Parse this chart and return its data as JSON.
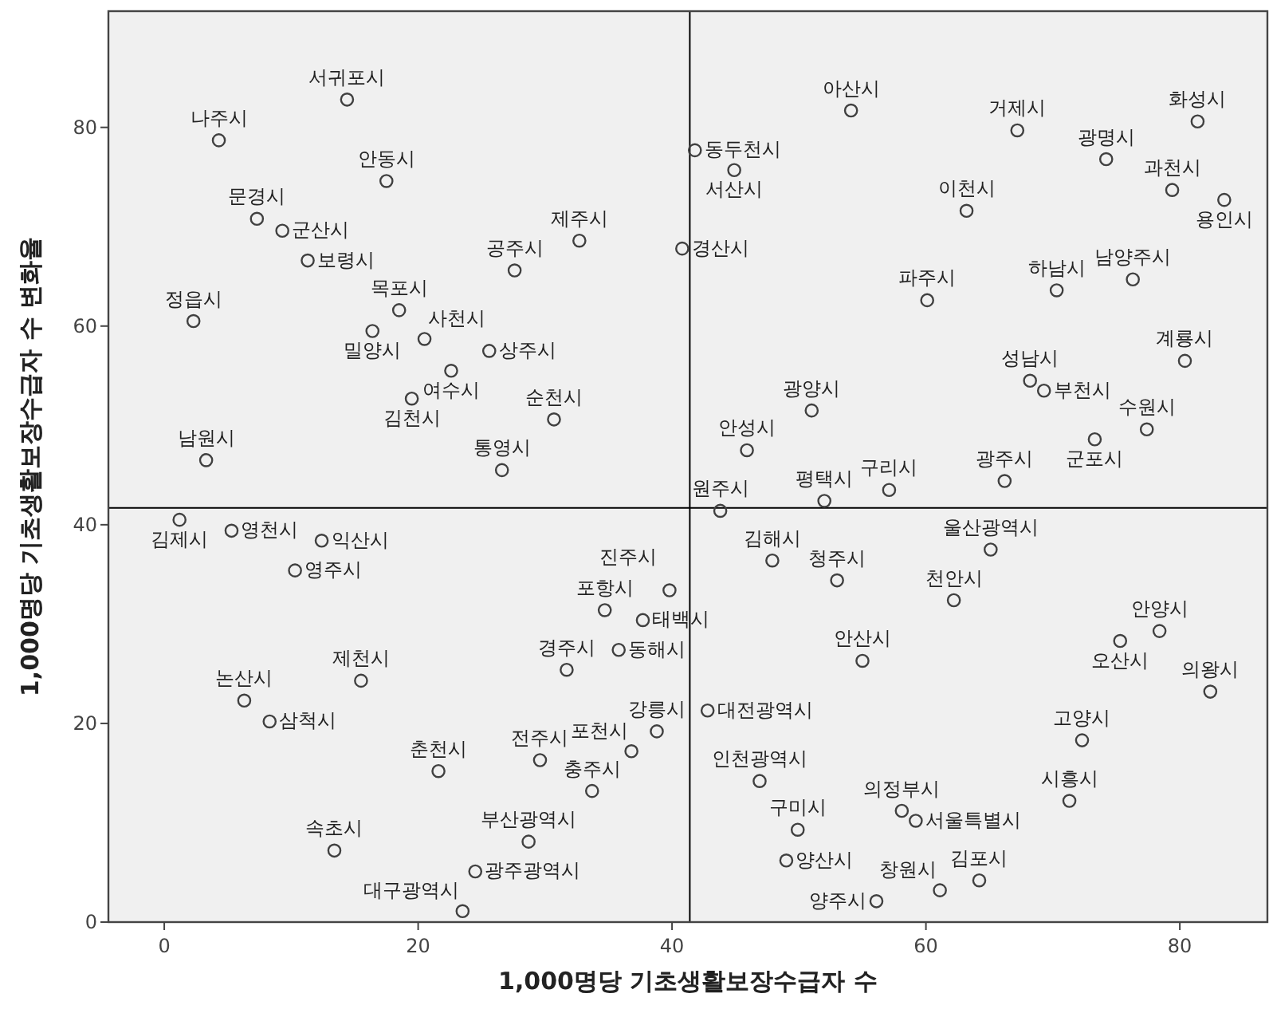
{
  "chart_data": {
    "type": "scatter",
    "xlabel": "1,000명당 기초생활보장수급자 수",
    "ylabel": "1,000명당 기초생활보장수급자 수 변화율",
    "xlim": [
      -4.4,
      86.9
    ],
    "ylim": [
      0,
      91.7
    ],
    "xticks": [
      0,
      20,
      40,
      60,
      80
    ],
    "yticks": [
      0,
      20,
      40,
      60,
      80
    ],
    "grid": false,
    "marker": "circle",
    "color": "#404040",
    "ref_lines": [
      {
        "axis": "x",
        "value": 41.4
      },
      {
        "axis": "y",
        "value": 41.7
      }
    ],
    "x": [
      14.4,
      4.3,
      17.5,
      7.3,
      9.3,
      11.3,
      2.3,
      18.5,
      16.4,
      20.5,
      27.6,
      25.6,
      32.7,
      22.6,
      19.5,
      30.7,
      26.6,
      3.3,
      41.8,
      44.9,
      40.8,
      54.1,
      67.2,
      74.2,
      81.4,
      79.4,
      83.5,
      63.2,
      60.1,
      70.3,
      76.3,
      80.4,
      68.2,
      69.3,
      77.4,
      73.3,
      51.0,
      45.9,
      57.1,
      66.2,
      43.8,
      1.2,
      5.3,
      12.4,
      10.3,
      34.7,
      35.8,
      31.7,
      39.8,
      37.7,
      6.3,
      8.3,
      15.5,
      21.6,
      29.6,
      33.7,
      38.8,
      36.8,
      28.7,
      13.4,
      24.5,
      23.5,
      52.0,
      47.9,
      53.0,
      65.1,
      62.2,
      78.4,
      75.3,
      82.4,
      55.0,
      42.8,
      72.3,
      46.9,
      71.3,
      58.1,
      59.2,
      49.9,
      49.0,
      64.2,
      61.1,
      56.1
    ],
    "values": [
      82.8,
      78.7,
      74.6,
      70.8,
      69.6,
      66.6,
      60.5,
      61.6,
      59.5,
      58.7,
      65.6,
      57.5,
      68.6,
      55.5,
      52.7,
      50.6,
      45.5,
      46.5,
      77.7,
      75.7,
      67.8,
      81.7,
      79.7,
      76.8,
      80.6,
      73.7,
      72.7,
      71.6,
      62.6,
      63.6,
      64.7,
      56.5,
      54.5,
      53.5,
      49.6,
      48.6,
      51.5,
      47.5,
      43.5,
      44.4,
      41.4,
      40.5,
      39.4,
      38.4,
      35.4,
      31.4,
      27.4,
      25.4,
      33.4,
      30.4,
      22.3,
      20.2,
      24.3,
      15.2,
      16.3,
      13.2,
      19.2,
      17.2,
      8.1,
      7.2,
      5.1,
      1.1,
      42.4,
      36.4,
      34.4,
      37.5,
      32.4,
      29.3,
      28.3,
      23.2,
      26.3,
      21.3,
      18.3,
      14.2,
      12.2,
      11.2,
      10.2,
      9.3,
      6.2,
      4.2,
      3.2,
      2.1
    ],
    "annotations": [
      {
        "text": "서귀포시",
        "x": 14.4,
        "y": 82.8
      },
      {
        "text": "나주시",
        "x": 4.3,
        "y": 78.7
      },
      {
        "text": "안동시",
        "x": 17.5,
        "y": 74.6
      },
      {
        "text": "문경시",
        "x": 7.3,
        "y": 70.8
      },
      {
        "text": "군산시",
        "x": 9.3,
        "y": 69.6
      },
      {
        "text": "보령시",
        "x": 11.3,
        "y": 66.6
      },
      {
        "text": "정읍시",
        "x": 2.3,
        "y": 60.5
      },
      {
        "text": "목포시",
        "x": 18.5,
        "y": 61.6
      },
      {
        "text": "밀양시",
        "x": 16.4,
        "y": 59.5
      },
      {
        "text": "사천시",
        "x": 20.5,
        "y": 58.7
      },
      {
        "text": "공주시",
        "x": 27.6,
        "y": 65.6
      },
      {
        "text": "상주시",
        "x": 25.6,
        "y": 57.5
      },
      {
        "text": "제주시",
        "x": 32.7,
        "y": 68.6
      },
      {
        "text": "여수시",
        "x": 22.6,
        "y": 55.5
      },
      {
        "text": "김천시",
        "x": 19.5,
        "y": 52.7
      },
      {
        "text": "순천시",
        "x": 30.7,
        "y": 50.6
      },
      {
        "text": "통영시",
        "x": 26.6,
        "y": 45.5
      },
      {
        "text": "남원시",
        "x": 3.3,
        "y": 46.5
      },
      {
        "text": "동두천시",
        "x": 41.8,
        "y": 77.7
      },
      {
        "text": "서산시",
        "x": 44.9,
        "y": 75.7
      },
      {
        "text": "경산시",
        "x": 40.8,
        "y": 67.8
      },
      {
        "text": "아산시",
        "x": 54.1,
        "y": 81.7
      },
      {
        "text": "거제시",
        "x": 67.2,
        "y": 79.7
      },
      {
        "text": "광명시",
        "x": 74.2,
        "y": 76.8
      },
      {
        "text": "화성시",
        "x": 81.4,
        "y": 80.6
      },
      {
        "text": "과천시",
        "x": 79.4,
        "y": 73.7
      },
      {
        "text": "용인시",
        "x": 83.5,
        "y": 72.7
      },
      {
        "text": "이천시",
        "x": 63.2,
        "y": 71.6
      },
      {
        "text": "파주시",
        "x": 60.1,
        "y": 62.6
      },
      {
        "text": "하남시",
        "x": 70.3,
        "y": 63.6
      },
      {
        "text": "남양주시",
        "x": 76.3,
        "y": 64.7
      },
      {
        "text": "계룡시",
        "x": 80.4,
        "y": 56.5
      },
      {
        "text": "성남시",
        "x": 68.2,
        "y": 54.5
      },
      {
        "text": "부천시",
        "x": 69.3,
        "y": 53.5
      },
      {
        "text": "수원시",
        "x": 77.4,
        "y": 49.6
      },
      {
        "text": "군포시",
        "x": 73.3,
        "y": 48.6
      },
      {
        "text": "광양시",
        "x": 51.0,
        "y": 51.5
      },
      {
        "text": "안성시",
        "x": 45.9,
        "y": 47.5
      },
      {
        "text": "구리시",
        "x": 57.1,
        "y": 43.5
      },
      {
        "text": "광주시",
        "x": 66.2,
        "y": 44.4
      },
      {
        "text": "원주시",
        "x": 43.8,
        "y": 41.4
      },
      {
        "text": "김제시",
        "x": 1.2,
        "y": 40.5
      },
      {
        "text": "영천시",
        "x": 5.3,
        "y": 39.4
      },
      {
        "text": "익산시",
        "x": 12.4,
        "y": 38.4
      },
      {
        "text": "영주시",
        "x": 10.3,
        "y": 35.4
      },
      {
        "text": "포항시",
        "x": 34.7,
        "y": 31.4
      },
      {
        "text": "동해시",
        "x": 35.8,
        "y": 27.4
      },
      {
        "text": "경주시",
        "x": 31.7,
        "y": 25.4
      },
      {
        "text": "진주시",
        "x": 39.8,
        "y": 33.4
      },
      {
        "text": "태백시",
        "x": 37.7,
        "y": 30.4
      },
      {
        "text": "논산시",
        "x": 6.3,
        "y": 22.3
      },
      {
        "text": "삼척시",
        "x": 8.3,
        "y": 20.2
      },
      {
        "text": "제천시",
        "x": 15.5,
        "y": 24.3
      },
      {
        "text": "춘천시",
        "x": 21.6,
        "y": 15.2
      },
      {
        "text": "전주시",
        "x": 29.6,
        "y": 16.3
      },
      {
        "text": "충주시",
        "x": 33.7,
        "y": 13.2
      },
      {
        "text": "강릉시",
        "x": 38.8,
        "y": 19.2
      },
      {
        "text": "포천시",
        "x": 36.8,
        "y": 17.2
      },
      {
        "text": "부산광역시",
        "x": 28.7,
        "y": 8.1
      },
      {
        "text": "속초시",
        "x": 13.4,
        "y": 7.2
      },
      {
        "text": "광주광역시",
        "x": 24.5,
        "y": 5.1
      },
      {
        "text": "대구광역시",
        "x": 23.5,
        "y": 1.1
      },
      {
        "text": "평택시",
        "x": 52.0,
        "y": 42.4
      },
      {
        "text": "김해시",
        "x": 47.9,
        "y": 36.4
      },
      {
        "text": "청주시",
        "x": 53.0,
        "y": 34.4
      },
      {
        "text": "울산광역시",
        "x": 65.1,
        "y": 37.5
      },
      {
        "text": "천안시",
        "x": 62.2,
        "y": 32.4
      },
      {
        "text": "안양시",
        "x": 78.4,
        "y": 29.3
      },
      {
        "text": "오산시",
        "x": 75.3,
        "y": 28.3
      },
      {
        "text": "의왕시",
        "x": 82.4,
        "y": 23.2
      },
      {
        "text": "안산시",
        "x": 55.0,
        "y": 26.3
      },
      {
        "text": "대전광역시",
        "x": 42.8,
        "y": 21.3
      },
      {
        "text": "고양시",
        "x": 72.3,
        "y": 18.3
      },
      {
        "text": "인천광역시",
        "x": 46.9,
        "y": 14.2
      },
      {
        "text": "시흥시",
        "x": 71.3,
        "y": 12.2
      },
      {
        "text": "의정부시",
        "x": 58.1,
        "y": 11.2
      },
      {
        "text": "서울특별시",
        "x": 59.2,
        "y": 10.2
      },
      {
        "text": "구미시",
        "x": 49.9,
        "y": 9.3
      },
      {
        "text": "양산시",
        "x": 49.0,
        "y": 6.2
      },
      {
        "text": "김포시",
        "x": 64.2,
        "y": 4.2
      },
      {
        "text": "창원시",
        "x": 61.1,
        "y": 3.2
      },
      {
        "text": "양주시",
        "x": 56.1,
        "y": 2.1
      }
    ]
  }
}
